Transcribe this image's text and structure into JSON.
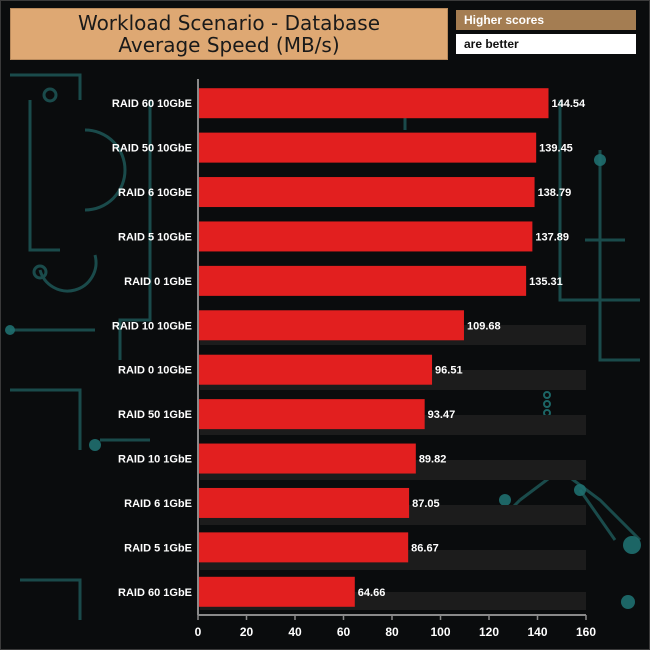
{
  "legend": {
    "higher": "Higher scores",
    "better": "are better"
  },
  "colors": {
    "bar": "#e21f1f",
    "title_bg": "#dea873",
    "legend_bg": "#a47d52",
    "background": "#0a0c0d",
    "circuit": "#1f5f5f"
  },
  "chart_data": {
    "type": "bar",
    "orientation": "horizontal",
    "title": "Workload Scenario - Database",
    "subtitle": "Average Speed (MB/s)",
    "categories": [
      "RAID 60 10GbE",
      "RAID 50 10GbE",
      "RAID 6 10GbE",
      "RAID 5 10GbE",
      "RAID 0 1GbE",
      "RAID 10 10GbE",
      "RAID 0 10GbE",
      "RAID 50 1GbE",
      "RAID 10 1GbE",
      "RAID 6 1GbE",
      "RAID 5 1GbE",
      "RAID 60 1GbE"
    ],
    "values": [
      144.54,
      139.45,
      138.79,
      137.89,
      135.31,
      109.68,
      96.51,
      93.47,
      89.82,
      87.05,
      86.67,
      64.66
    ],
    "value_labels": [
      "144.54",
      "139.45",
      "138.79",
      "137.89",
      "135.31",
      "109.68",
      "96.51",
      "93.47",
      "89.82",
      "87.05",
      "86.67",
      "64.66"
    ],
    "xlim": [
      0,
      160
    ],
    "ticks": [
      0,
      20,
      40,
      60,
      80,
      100,
      120,
      140,
      160
    ],
    "tick_labels": [
      "0",
      "20",
      "40",
      "60",
      "80",
      "100",
      "120",
      "140",
      "160"
    ],
    "grid": false,
    "xlabel": "",
    "ylabel": ""
  }
}
